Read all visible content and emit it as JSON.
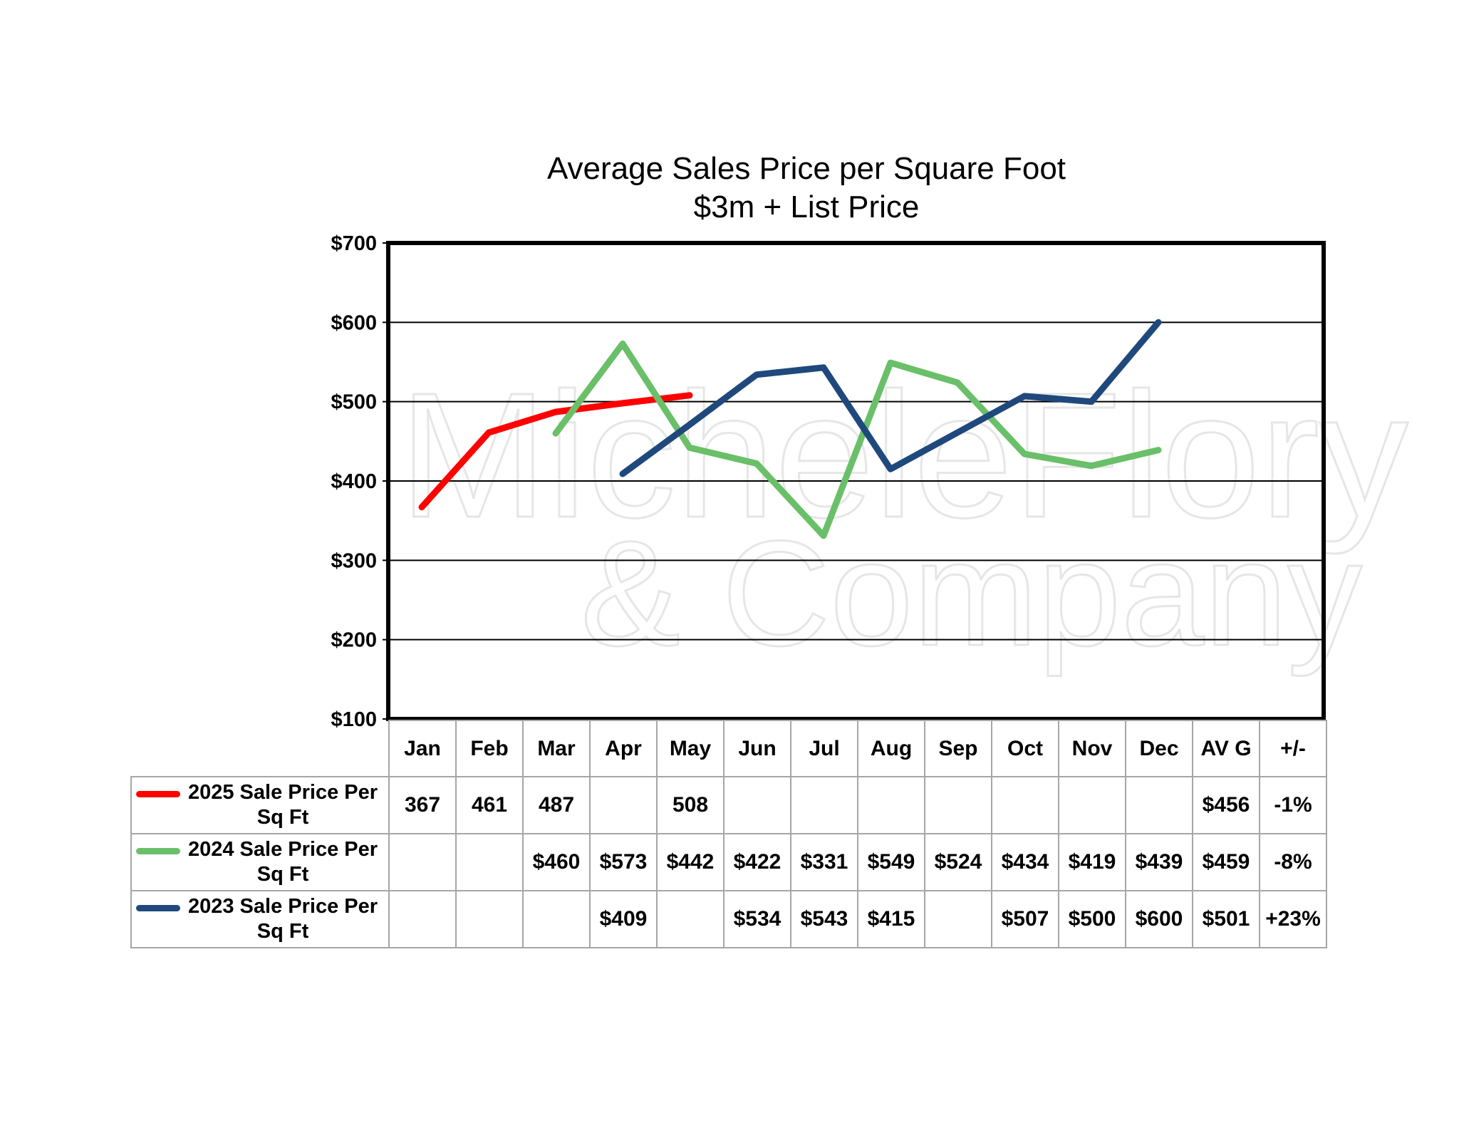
{
  "chart_data": {
    "type": "line",
    "title": "Average Sales Price per Square Foot",
    "subtitle": "$3m + List Price",
    "categories": [
      "Jan",
      "Feb",
      "Mar",
      "Apr",
      "May",
      "Jun",
      "Jul",
      "Aug",
      "Sep",
      "Oct",
      "Nov",
      "Dec"
    ],
    "extra_columns": [
      "AV G",
      "+/-"
    ],
    "ylim": [
      100,
      700
    ],
    "yticks": [
      "$100",
      "$200",
      "$300",
      "$400",
      "$500",
      "$600",
      "$700"
    ],
    "grid": true,
    "legend": "table-left",
    "series": [
      {
        "name": "2025 Sale Price Per Sq Ft",
        "color": "#ff0000",
        "values": [
          367,
          461,
          487,
          null,
          508,
          null,
          null,
          null,
          null,
          null,
          null,
          null
        ],
        "line_values": [
          367,
          461,
          487,
          498,
          508,
          null,
          null,
          null,
          null,
          null,
          null,
          null
        ],
        "cells": [
          "367",
          "461",
          "487",
          "",
          "508",
          "",
          "",
          "",
          "",
          "",
          "",
          ""
        ],
        "avg": "$456",
        "change": "-1%"
      },
      {
        "name": "2024 Sale Price Per Sq Ft",
        "color": "#6abf69",
        "values": [
          null,
          null,
          460,
          573,
          442,
          422,
          331,
          549,
          524,
          434,
          419,
          439
        ],
        "line_values": [
          null,
          null,
          460,
          573,
          442,
          422,
          331,
          549,
          524,
          434,
          419,
          439
        ],
        "cells": [
          "",
          "",
          "$460",
          "$573",
          "$442",
          "$422",
          "$331",
          "$549",
          "$524",
          "$434",
          "$419",
          "$439"
        ],
        "avg": "$459",
        "change": "-8%"
      },
      {
        "name": "2023 Sale Price Per Sq Ft",
        "color": "#1f497d",
        "values": [
          null,
          null,
          null,
          409,
          null,
          534,
          543,
          415,
          null,
          507,
          500,
          600
        ],
        "line_values": [
          null,
          null,
          null,
          409,
          471,
          534,
          543,
          415,
          461,
          507,
          500,
          600
        ],
        "cells": [
          "",
          "",
          "",
          "$409",
          "",
          "$534",
          "$543",
          "$415",
          "",
          "$507",
          "$500",
          "$600"
        ],
        "avg": "$501",
        "change": "+23%"
      }
    ]
  },
  "watermark": {
    "line1": "MicheleFlory",
    "line2": "& Company"
  }
}
